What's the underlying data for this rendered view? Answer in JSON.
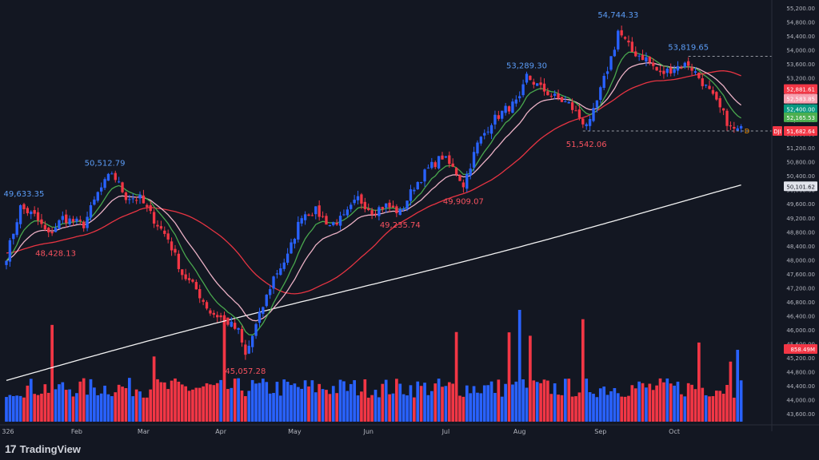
{
  "watermark": "TradingView",
  "chart_data": {
    "type": "candlestick",
    "ylim": [
      43200,
      55200
    ],
    "price_axis_ticks": [
      "55,200.00",
      "54,800.00",
      "54,400.00",
      "54,000.00",
      "53,600.00",
      "53,200.00",
      "52,800.00",
      "52,400.00",
      "52,000.00",
      "51,600.00",
      "51,200.00",
      "50,800.00",
      "50,400.00",
      "50,000.00",
      "49,600.00",
      "49,200.00",
      "48,800.00",
      "48,400.00",
      "48,000.00",
      "47,600.00",
      "47,200.00",
      "46,800.00",
      "46,400.00",
      "46,000.00",
      "45,600.00",
      "45,200.00",
      "44,800.00",
      "44,400.00",
      "44,000.00",
      "43,600.00"
    ],
    "time_axis_ticks": [
      "326",
      "Feb",
      "Mar",
      "Apr",
      "May",
      "Jun",
      "Jul",
      "Aug",
      "Sep",
      "Oct"
    ],
    "annotations": [
      {
        "label": "49,633.35",
        "price": 49633.35,
        "day": 5,
        "kind": "high"
      },
      {
        "label": "48,428.13",
        "price": 48428.13,
        "day": 14,
        "kind": "low"
      },
      {
        "label": "50,512.79",
        "price": 50512.79,
        "day": 28,
        "kind": "high"
      },
      {
        "label": "45,057.28",
        "price": 45057.28,
        "day": 68,
        "kind": "low"
      },
      {
        "label": "49,235.74",
        "price": 49235.74,
        "day": 112,
        "kind": "low"
      },
      {
        "label": "49,909.07",
        "price": 49909.07,
        "day": 130,
        "kind": "low"
      },
      {
        "label": "53,289.30",
        "price": 53289.3,
        "day": 148,
        "kind": "high"
      },
      {
        "label": "51,542.06",
        "price": 51542.06,
        "day": 165,
        "kind": "low"
      },
      {
        "label": "54,744.33",
        "price": 54744.33,
        "day": 174,
        "kind": "high"
      },
      {
        "label": "53,819.65",
        "price": 53819.65,
        "day": 194,
        "kind": "high"
      }
    ],
    "badges": [
      {
        "label": "52,881.61",
        "price": 52881.61,
        "color": "#f23645"
      },
      {
        "label": "52,583.85",
        "price": 52583.85,
        "color": "#f7a0b0"
      },
      {
        "label": "52,400.00",
        "price": 52400.0,
        "color": "#089981"
      },
      {
        "label": "52,165.53",
        "price": 52165.53,
        "color": "#4caf50"
      },
      {
        "label": "51,682.64",
        "price": 51682.64,
        "color": "#f23645",
        "prefix": "DJI"
      },
      {
        "label": "50,101.62",
        "price": 50101.62,
        "color": "#e0e3eb"
      },
      {
        "label": "858.49M",
        "price": 45450,
        "color": "#f23645"
      }
    ],
    "dashed_levels": [
      53819.65,
      51682.64
    ],
    "key_points": [
      [
        0,
        48100
      ],
      [
        4,
        49500
      ],
      [
        8,
        49250
      ],
      [
        12,
        48700
      ],
      [
        16,
        49200
      ],
      [
        22,
        49000
      ],
      [
        26,
        49900
      ],
      [
        30,
        50500
      ],
      [
        34,
        49800
      ],
      [
        38,
        49750
      ],
      [
        42,
        49150
      ],
      [
        46,
        48600
      ],
      [
        50,
        47600
      ],
      [
        54,
        47150
      ],
      [
        58,
        46500
      ],
      [
        62,
        46300
      ],
      [
        66,
        45950
      ],
      [
        68,
        45250
      ],
      [
        72,
        46400
      ],
      [
        76,
        47500
      ],
      [
        80,
        48100
      ],
      [
        84,
        49300
      ],
      [
        88,
        49400
      ],
      [
        92,
        49000
      ],
      [
        96,
        49200
      ],
      [
        100,
        49750
      ],
      [
        104,
        49400
      ],
      [
        108,
        49550
      ],
      [
        112,
        49350
      ],
      [
        116,
        50100
      ],
      [
        120,
        50600
      ],
      [
        124,
        50950
      ],
      [
        128,
        50500
      ],
      [
        130,
        50150
      ],
      [
        134,
        51300
      ],
      [
        138,
        51950
      ],
      [
        142,
        52300
      ],
      [
        146,
        52550
      ],
      [
        148,
        53250
      ],
      [
        152,
        52900
      ],
      [
        156,
        52650
      ],
      [
        160,
        52450
      ],
      [
        164,
        51950
      ],
      [
        166,
        51900
      ],
      [
        170,
        53150
      ],
      [
        173,
        54100
      ],
      [
        174,
        54550
      ],
      [
        178,
        53950
      ],
      [
        182,
        53750
      ],
      [
        186,
        53300
      ],
      [
        190,
        53500
      ],
      [
        194,
        53600
      ],
      [
        196,
        53350
      ],
      [
        200,
        52800
      ],
      [
        204,
        52150
      ],
      [
        206,
        51750
      ],
      [
        208,
        51700
      ]
    ],
    "series": [
      {
        "name": "",
        "color": "#ffffff",
        "kind": "ma200"
      },
      {
        "name": "",
        "color": "#f23645",
        "kind": "ma50"
      },
      {
        "name": "",
        "color": "#f8bbd0",
        "kind": "ema20"
      },
      {
        "name": "",
        "color": "#4caf50",
        "kind": "ema10"
      }
    ],
    "volume": {
      "up_color": "#2962ff",
      "down_color": "#f23645"
    },
    "candle_colors": {
      "up": "#2962ff",
      "down": "#f23645"
    },
    "marker": "D",
    "grid": false
  }
}
